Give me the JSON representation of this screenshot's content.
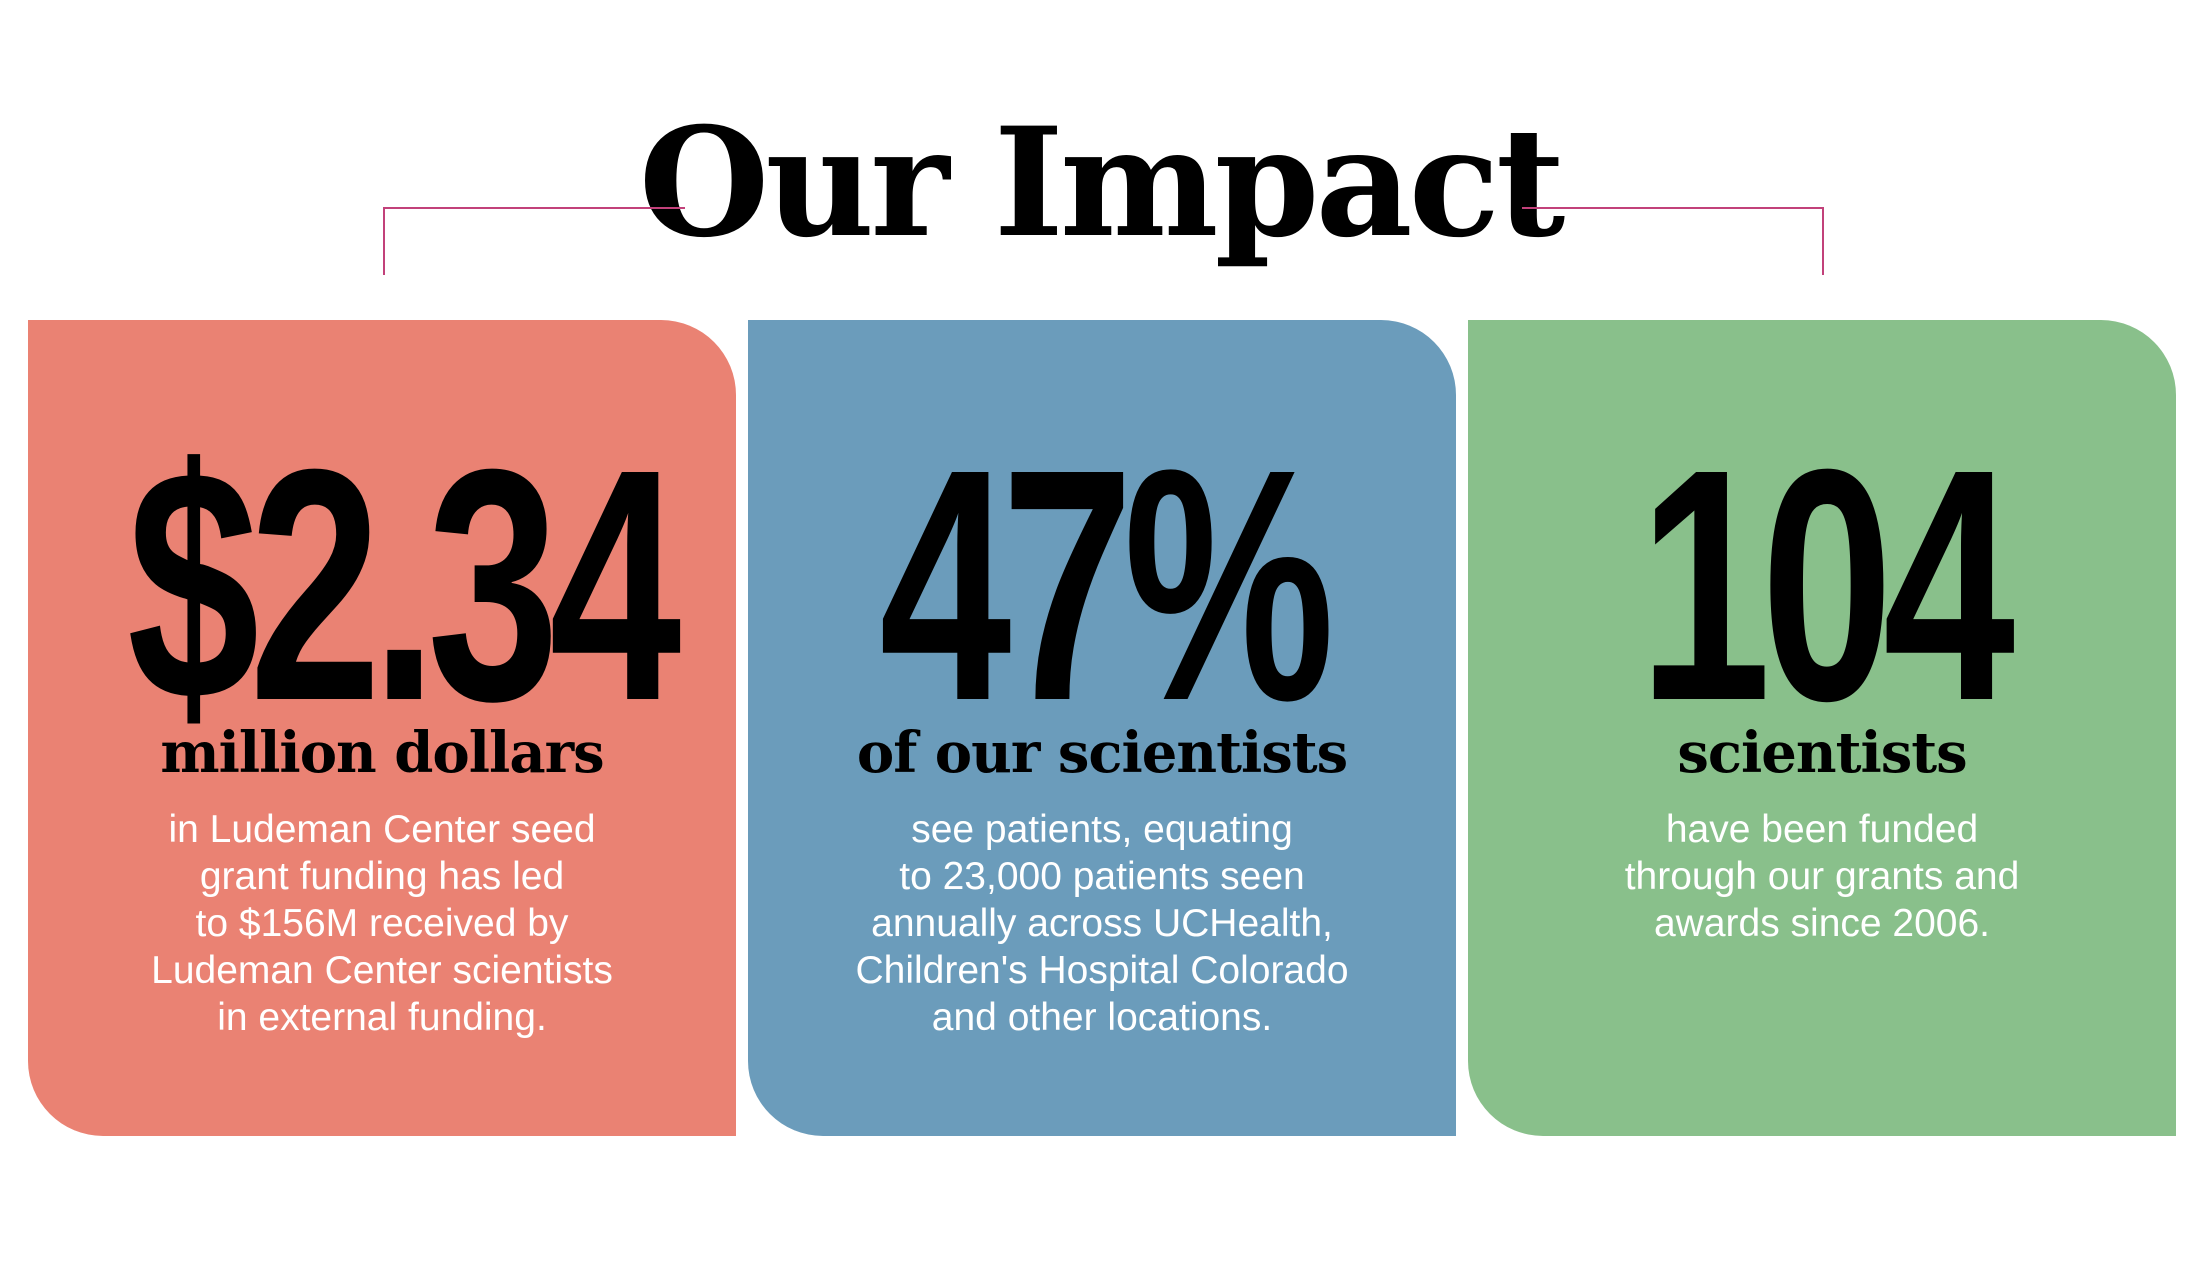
{
  "title": "Our Impact",
  "colors": {
    "bracket": "#c2417a",
    "card_red": "#ea8273",
    "card_blue": "#6b9cbb",
    "card_green": "#89c08b"
  },
  "cards": [
    {
      "number": "$2.34",
      "subhead": "million dollars",
      "lines": [
        "in Ludeman Center seed",
        "grant funding has led",
        "to $156M received by",
        "Ludeman Center scientists",
        "in external funding."
      ]
    },
    {
      "number": "47%",
      "subhead": "of our scientists",
      "lines": [
        "see patients, equating",
        "to 23,000 patients seen",
        "annually across UCHealth,",
        "Children's Hospital Colorado",
        "and other locations."
      ]
    },
    {
      "number": "104",
      "subhead": "scientists",
      "lines": [
        "have been funded",
        "through our grants and",
        "awards since 2006."
      ]
    }
  ]
}
